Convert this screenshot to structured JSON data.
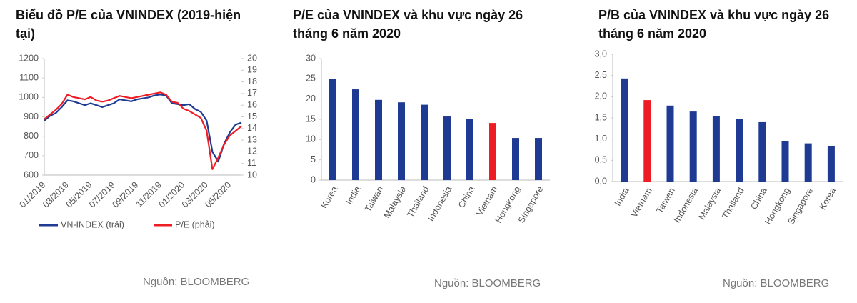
{
  "chart_data": [
    {
      "type": "line",
      "title": "Biểu đồ P/E của VNINDEX (2019-hiện tại)",
      "source": "Nguồn: BLOOMBERG",
      "categories": [
        "01/2019",
        null,
        null,
        null,
        "03/2019",
        null,
        null,
        null,
        "05/2019",
        null,
        null,
        null,
        "07/2019",
        null,
        null,
        null,
        "09/2019",
        null,
        null,
        null,
        "11/2019",
        null,
        null,
        null,
        "01/2020",
        null,
        null,
        null,
        "03/2020",
        null,
        null,
        null,
        "05/2020",
        null,
        null
      ],
      "series": [
        {
          "name": "VN-INDEX (trái)",
          "color": "#1f3a93",
          "values": [
            880,
            905,
            920,
            950,
            985,
            980,
            970,
            960,
            970,
            960,
            950,
            960,
            970,
            990,
            985,
            980,
            990,
            995,
            1000,
            1010,
            1015,
            1010,
            970,
            965,
            960,
            965,
            940,
            925,
            880,
            720,
            670,
            760,
            820,
            860,
            870
          ]
        },
        {
          "name": "P/E (phải)",
          "color": "#ee1c25",
          "axis": "y2",
          "values": [
            14.8,
            15.2,
            15.6,
            16.1,
            16.9,
            16.7,
            16.6,
            16.5,
            16.7,
            16.4,
            16.3,
            16.4,
            16.6,
            16.8,
            16.7,
            16.6,
            16.7,
            16.8,
            16.9,
            17.0,
            17.1,
            16.9,
            16.3,
            16.2,
            15.7,
            15.5,
            15.2,
            14.9,
            13.8,
            10.5,
            11.5,
            12.6,
            13.4,
            13.8,
            14.2
          ]
        }
      ],
      "ylim": [
        600,
        1200
      ],
      "yticks": [
        600,
        700,
        800,
        900,
        1000,
        1100,
        1200
      ],
      "y2lim": [
        10,
        20
      ],
      "y2ticks": [
        10,
        11,
        12,
        13,
        14,
        15,
        16,
        17,
        18,
        19,
        20
      ],
      "legend": "bottom"
    },
    {
      "type": "bar",
      "title": "P/E của VNINDEX và khu vực ngày 26 tháng 6 năm 2020",
      "source": "Nguồn: BLOOMBERG",
      "categories": [
        "Korea",
        "India",
        "Taiwan",
        "Malaysia",
        "Thailand",
        "Indonesia",
        "China",
        "Vietnam",
        "Hongkong",
        "Singapore"
      ],
      "values": [
        24.9,
        22.4,
        19.8,
        19.2,
        18.6,
        15.7,
        15.1,
        14.1,
        10.4,
        10.4
      ],
      "colors": [
        "#1f3a93",
        "#1f3a93",
        "#1f3a93",
        "#1f3a93",
        "#1f3a93",
        "#1f3a93",
        "#1f3a93",
        "#ee1c25",
        "#1f3a93",
        "#1f3a93"
      ],
      "ylim": [
        0,
        30
      ],
      "yticks": [
        0,
        5,
        10,
        15,
        20,
        25,
        30
      ]
    },
    {
      "type": "bar",
      "title": "P/B của VNINDEX và khu vực ngày 26 tháng 6 năm 2020",
      "source": "Nguồn: BLOOMBERG",
      "categories": [
        "India",
        "Vietnam",
        "Taiwan",
        "Indonesia",
        "Malaysia",
        "Thailand",
        "China",
        "Hongkong",
        "Singapore",
        "Korea"
      ],
      "values": [
        2.43,
        1.92,
        1.79,
        1.65,
        1.55,
        1.48,
        1.4,
        0.95,
        0.9,
        0.83
      ],
      "colors": [
        "#1f3a93",
        "#ee1c25",
        "#1f3a93",
        "#1f3a93",
        "#1f3a93",
        "#1f3a93",
        "#1f3a93",
        "#1f3a93",
        "#1f3a93",
        "#1f3a93"
      ],
      "ylim": [
        0,
        3
      ],
      "yticks": [
        {
          "value": 0,
          "label": "0,0"
        },
        {
          "value": 0.5,
          "label": "0,5"
        },
        {
          "value": 1,
          "label": "1,0"
        },
        {
          "value": 1.5,
          "label": "1,5"
        },
        {
          "value": 2,
          "label": "2,0"
        },
        {
          "value": 2.5,
          "label": "2,5"
        },
        {
          "value": 3,
          "label": "3,0"
        }
      ]
    }
  ]
}
